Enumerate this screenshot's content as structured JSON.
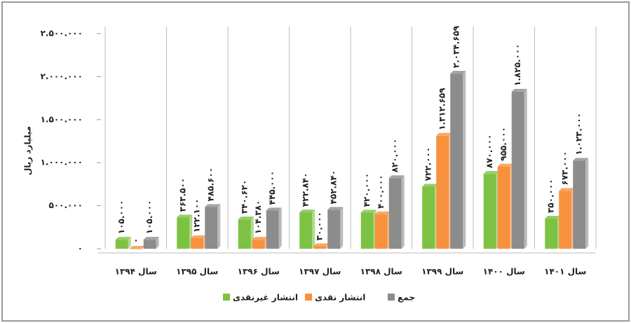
{
  "chart_data": {
    "type": "bar",
    "y_label": "میلیارد ریال",
    "categories": [
      "سال ۱۳۹۴",
      "سال ۱۳۹۵",
      "سال ۱۳۹۶",
      "سال ۱۳۹۷",
      "سال ۱۳۹۸",
      "سال ۱۳۹۹",
      "سال ۱۴۰۰",
      "سال ۱۴۰۱"
    ],
    "series": [
      {
        "name": "انتشار غیرنقدی",
        "color": "#7dc242",
        "values": [
          105000,
          363500,
          340620,
          422840,
          420000,
          722000,
          870000,
          350000
        ],
        "value_labels": [
          "۱۰۵.۰۰۰",
          "۳۶۳.۵۰۰",
          "۳۴۰.۶۲۰",
          "۴۲۲.۸۴۰",
          "۴۲۰.۰۰۰",
          "۷۲۲.۰۰۰",
          "۸۷۰.۰۰۰",
          "۳۵۰.۰۰۰"
        ]
      },
      {
        "name": "انتشار نقدی",
        "color": "#f7913d",
        "values": [
          0,
          122100,
          104380,
          30000,
          400000,
          1312659,
          955000,
          673000
        ],
        "value_labels": [
          "۰",
          "۱۲۲.۱۰۰",
          "۱۰۴.۳۸۰",
          "۳۰.۰۰۰",
          "۴۰۰.۰۰۰",
          "۱.۳۱۲.۶۵۹",
          "۹۵۵.۰۰۰",
          "۶۷۳.۰۰۰"
        ]
      },
      {
        "name": "جمع",
        "color": "#8c8c8c",
        "values": [
          105000,
          485600,
          445000,
          452840,
          820000,
          2034659,
          1825000,
          1023000
        ],
        "value_labels": [
          "۱۰۵.۰۰۰",
          "۴۸۵.۶۰۰",
          "۴۴۵.۰۰۰",
          "۴۵۲.۸۴۰",
          "۸۲۰.۰۰۰",
          "۲.۰۳۴.۶۵۹",
          "۱.۸۲۵.۰۰۰",
          "۱.۰۲۳.۰۰۰"
        ]
      }
    ],
    "ylim": [
      0,
      2500000
    ],
    "yticks": [
      {
        "value": 0,
        "label": "۰"
      },
      {
        "value": 500000,
        "label": "۵۰۰.۰۰۰"
      },
      {
        "value": 1000000,
        "label": "۱.۰۰۰.۰۰۰"
      },
      {
        "value": 1500000,
        "label": "۱.۵۰۰.۰۰۰"
      },
      {
        "value": 2000000,
        "label": "۲.۰۰۰.۰۰۰"
      },
      {
        "value": 2500000,
        "label": "۲.۵۰۰.۰۰۰"
      }
    ]
  }
}
